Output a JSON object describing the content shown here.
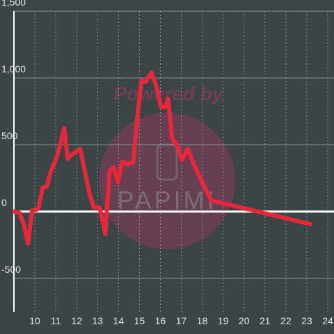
{
  "chart_data": {
    "type": "line",
    "watermark": {
      "line1": "Powered by",
      "line2": "PAPIMI"
    },
    "x": [
      9.0,
      9.27,
      9.47,
      9.67,
      9.87,
      10.03,
      10.17,
      10.37,
      10.57,
      10.77,
      11.03,
      11.23,
      11.4,
      11.57,
      11.77,
      11.97,
      12.17,
      12.43,
      12.63,
      12.83,
      13.1,
      13.37,
      13.57,
      13.77,
      13.97,
      14.17,
      14.43,
      14.7,
      14.9,
      15.1,
      15.3,
      15.57,
      15.83,
      16.03,
      16.23,
      16.37,
      16.57,
      16.83,
      17.03,
      17.3,
      17.57,
      17.97,
      18.43,
      23.17
    ],
    "series": [
      {
        "color": "#e8283a",
        "values": [
          0,
          -10,
          -94,
          -240,
          10,
          10,
          21,
          177,
          188,
          302,
          396,
          510,
          625,
          396,
          427,
          448,
          469,
          271,
          125,
          31,
          31,
          -167,
          302,
          333,
          219,
          375,
          354,
          365,
          708,
          979,
          969,
          1042,
          927,
          781,
          781,
          844,
          542,
          490,
          385,
          469,
          365,
          229,
          83,
          -94
        ]
      }
    ],
    "xlim": [
      9,
      24.3
    ],
    "xticks": [
      10,
      11,
      12,
      13,
      14,
      15,
      16,
      17,
      18,
      19,
      20,
      21,
      22,
      23,
      24
    ],
    "ylim": [
      -750,
      1500
    ],
    "yticks": [
      {
        "value": -500,
        "label": "-500"
      },
      0,
      {
        "value": 500,
        "label": "500"
      },
      {
        "value": 1000,
        "label": "1,000"
      },
      {
        "value": 1500,
        "label": "1,500"
      }
    ],
    "grid": true
  }
}
